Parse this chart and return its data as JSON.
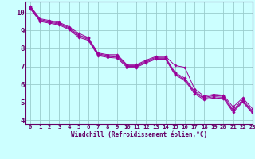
{
  "xlabel": "Windchill (Refroidissement éolien,°C)",
  "bg_color": "#ccffff",
  "line_color": "#990099",
  "grid_color": "#99cccc",
  "axis_color": "#660066",
  "spine_color": "#660066",
  "xlim": [
    -0.5,
    23
  ],
  "ylim": [
    3.8,
    10.6
  ],
  "yticks": [
    4,
    5,
    6,
    7,
    8,
    9,
    10
  ],
  "xticks": [
    0,
    1,
    2,
    3,
    4,
    5,
    6,
    7,
    8,
    9,
    10,
    11,
    12,
    13,
    14,
    15,
    16,
    17,
    18,
    19,
    20,
    21,
    22,
    23
  ],
  "series": [
    [
      10.35,
      9.65,
      9.55,
      9.45,
      9.2,
      8.85,
      8.6,
      7.75,
      7.65,
      7.65,
      7.1,
      7.1,
      7.35,
      7.55,
      7.55,
      7.05,
      6.95,
      5.75,
      5.35,
      5.45,
      5.4,
      4.75,
      5.25,
      4.65
    ],
    [
      10.3,
      9.6,
      9.5,
      9.4,
      9.15,
      8.75,
      8.55,
      7.7,
      7.6,
      7.58,
      7.05,
      7.05,
      7.3,
      7.5,
      7.5,
      6.65,
      6.35,
      5.62,
      5.28,
      5.38,
      5.35,
      4.6,
      5.15,
      4.52
    ],
    [
      10.25,
      9.55,
      9.45,
      9.35,
      9.1,
      8.7,
      8.5,
      7.65,
      7.55,
      7.52,
      7.0,
      7.0,
      7.25,
      7.45,
      7.45,
      6.58,
      6.28,
      5.55,
      5.22,
      5.32,
      5.28,
      4.53,
      5.08,
      4.46
    ],
    [
      10.2,
      9.5,
      9.4,
      9.3,
      9.05,
      8.62,
      8.45,
      7.6,
      7.5,
      7.46,
      6.95,
      6.95,
      7.2,
      7.4,
      7.4,
      6.52,
      6.22,
      5.48,
      5.15,
      5.25,
      5.22,
      4.46,
      5.02,
      4.4
    ]
  ]
}
